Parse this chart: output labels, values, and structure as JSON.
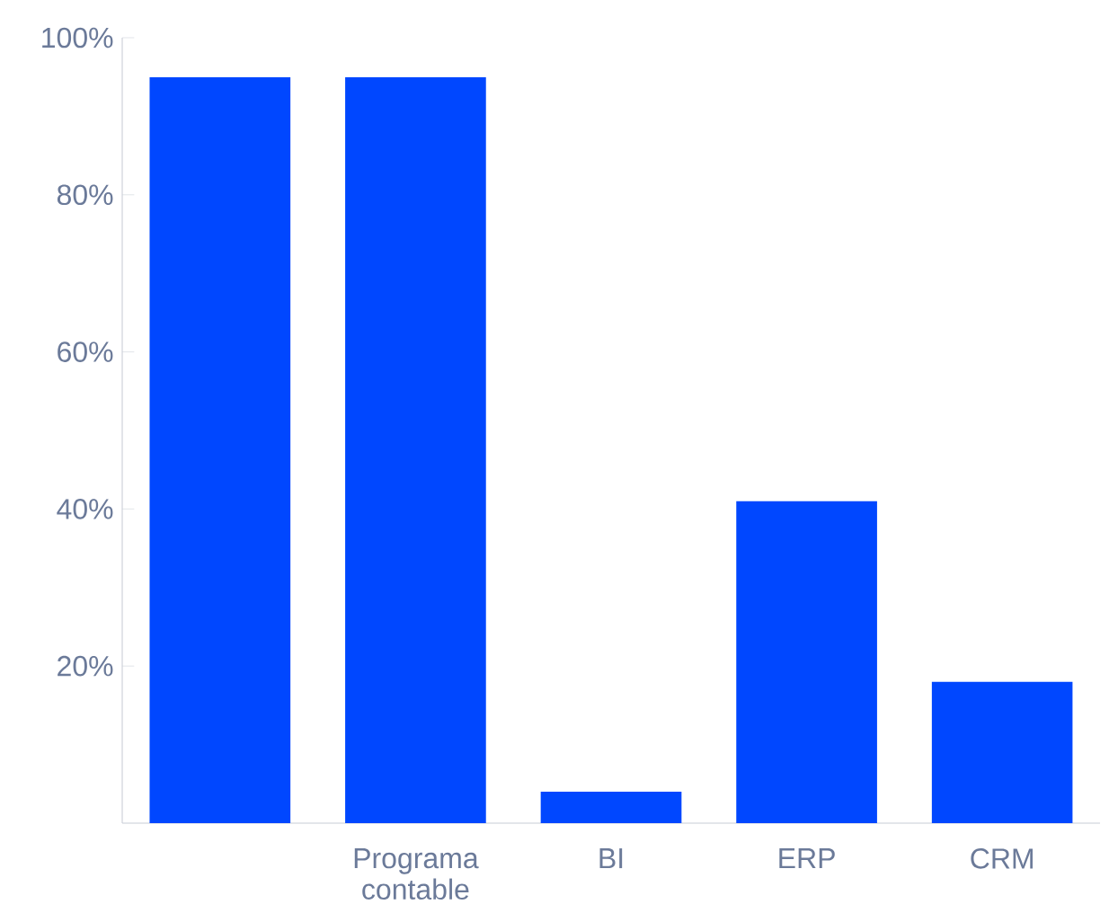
{
  "chart_data": {
    "type": "bar",
    "categories": [
      null,
      "Programa contable",
      "BI",
      "ERP",
      "CRM"
    ],
    "values": [
      95,
      95,
      4,
      41,
      18
    ],
    "color": "#0047ff",
    "ylim": [
      0,
      100
    ],
    "yticks": [
      {
        "value": 20,
        "label": "20%"
      },
      {
        "value": 40,
        "label": "40%"
      },
      {
        "value": 60,
        "label": "60%"
      },
      {
        "value": 80,
        "label": "80%"
      },
      {
        "value": 100,
        "label": "100%"
      }
    ],
    "grid": false
  }
}
